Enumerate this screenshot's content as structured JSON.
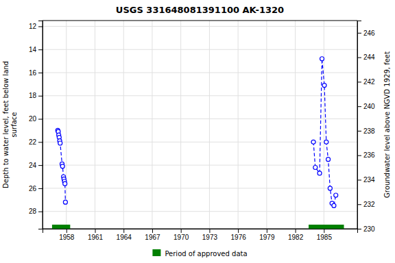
{
  "chart_data": {
    "type": "line",
    "title": "USGS 331648081391100 AK-1320",
    "ylabel": "Depth to water level, feet below land\n surface",
    "y2label": "Groundwater level above NGVD 1929, feet",
    "xlim": [
      1955.5,
      1988.5
    ],
    "xticks": [
      1958,
      1961,
      1964,
      1967,
      1970,
      1973,
      1976,
      1979,
      1982,
      1985
    ],
    "ylim": [
      29.5,
      11.5
    ],
    "yticks": [
      12,
      14,
      16,
      18,
      20,
      22,
      24,
      26,
      28
    ],
    "y2lim": [
      230,
      247
    ],
    "y2ticks": [
      230,
      232,
      234,
      236,
      238,
      240,
      242,
      244,
      246
    ],
    "grid": true,
    "legend": "bottom",
    "series": [
      {
        "x": [
          1957.1,
          1957.15,
          1957.2,
          1957.25,
          1957.3,
          1957.35,
          1957.55,
          1957.6,
          1957.7,
          1957.75,
          1957.8,
          1957.85,
          1957.9
        ],
        "values": [
          21.0,
          21.1,
          21.4,
          21.6,
          21.9,
          22.1,
          23.9,
          24.1,
          25.0,
          25.2,
          25.4,
          25.6,
          27.2
        ],
        "color": "#0000ff",
        "line_style": "dashed",
        "marker": "circle"
      },
      {
        "x": [
          1983.9,
          1984.1,
          1984.55,
          1984.8,
          1985.05,
          1985.25,
          1985.45,
          1985.65,
          1985.85,
          1986.05,
          1986.25
        ],
        "values": [
          22.0,
          24.2,
          24.7,
          14.8,
          17.1,
          22.0,
          23.5,
          26.0,
          27.3,
          27.5,
          26.6
        ],
        "color": "#0000ff",
        "line_style": "dashed",
        "marker": "circle"
      }
    ],
    "periods": {
      "name": "Period of approved data",
      "color": "#008000",
      "ranges": [
        [
          1956.5,
          1958.4
        ],
        [
          1983.4,
          1987.1
        ]
      ]
    }
  }
}
